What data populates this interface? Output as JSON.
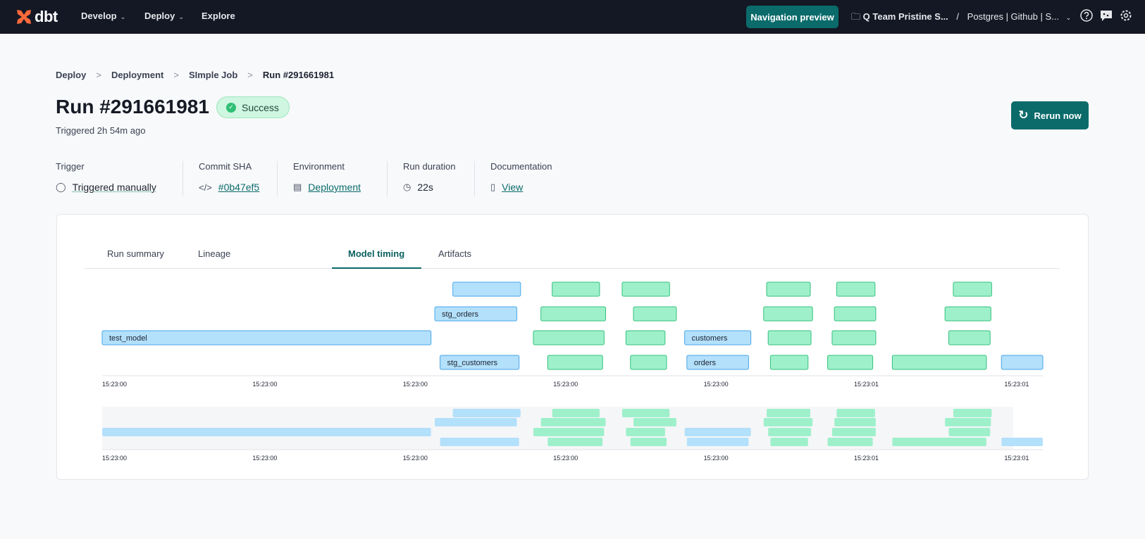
{
  "nav": {
    "logo": "dbt",
    "items": [
      {
        "label": "Develop",
        "has_menu": true
      },
      {
        "label": "Deploy",
        "has_menu": true
      },
      {
        "label": "Explore",
        "has_menu": false
      }
    ],
    "preview_button": "Navigation preview",
    "project": "Q Team Pristine S...",
    "separator": "/",
    "environment": "Postgres | Github | S...",
    "icons": [
      "help-icon",
      "chat-icon",
      "settings-icon"
    ]
  },
  "breadcrumb": [
    "Deploy",
    "Deployment",
    "SImple Job",
    "Run #291661981"
  ],
  "header": {
    "title": "Run #291661981",
    "status": "Success",
    "subtitle": "Triggered 2h 54m ago",
    "rerun_label": "Rerun now"
  },
  "meta": [
    {
      "label": "Trigger",
      "value": "Triggered manually",
      "icon": "user-icon"
    },
    {
      "label": "Commit SHA",
      "value": "#0b47ef5",
      "icon": "code-icon"
    },
    {
      "label": "Environment",
      "value": "Deployment",
      "icon": "database-icon"
    },
    {
      "label": "Run duration",
      "value": "22s",
      "icon": "clock-icon"
    },
    {
      "label": "Documentation",
      "value": "View",
      "icon": "book-icon"
    }
  ],
  "tabs": [
    "Run summary",
    "Lineage",
    "Model timing",
    "Artifacts"
  ],
  "active_tab": "Model timing",
  "colors": {
    "accent": "#0b6b6b",
    "model": "#b3e0fb",
    "model_border": "#4aa6e8",
    "test": "#9ef0cb",
    "test_border": "#35c07d"
  },
  "chart_data": {
    "type": "gantt",
    "x_unit": "seconds after 15:23:00",
    "x_range": [
      0,
      1.25
    ],
    "x_ticks": [
      "15:23:00",
      "15:23:00",
      "15:23:00",
      "15:23:00",
      "15:23:00",
      "15:23:01",
      "15:23:01"
    ],
    "rows": [
      [
        {
          "kind": "model",
          "label": "",
          "start": 0.466,
          "end": 0.556
        },
        {
          "kind": "test",
          "start": 0.598,
          "end": 0.661
        },
        {
          "kind": "test",
          "start": 0.691,
          "end": 0.754
        },
        {
          "kind": "test",
          "start": 0.883,
          "end": 0.941
        },
        {
          "kind": "test",
          "start": 0.976,
          "end": 1.027
        },
        {
          "kind": "test",
          "start": 1.131,
          "end": 1.182
        }
      ],
      [
        {
          "kind": "model",
          "label": "stg_orders",
          "start": 0.442,
          "end": 0.551
        },
        {
          "kind": "test",
          "start": 0.583,
          "end": 0.669
        },
        {
          "kind": "test",
          "start": 0.706,
          "end": 0.763
        },
        {
          "kind": "test",
          "start": 0.879,
          "end": 0.944
        },
        {
          "kind": "test",
          "start": 0.973,
          "end": 1.028
        },
        {
          "kind": "test",
          "start": 1.12,
          "end": 1.181
        }
      ],
      [
        {
          "kind": "model",
          "label": "test_model",
          "start": 0.0,
          "end": 0.437
        },
        {
          "kind": "test",
          "start": 0.573,
          "end": 0.667
        },
        {
          "kind": "test",
          "start": 0.696,
          "end": 0.748
        },
        {
          "kind": "model",
          "label": "customers",
          "start": 0.774,
          "end": 0.862
        },
        {
          "kind": "test",
          "start": 0.885,
          "end": 0.942
        },
        {
          "kind": "test",
          "start": 0.97,
          "end": 1.028
        },
        {
          "kind": "test",
          "start": 1.125,
          "end": 1.18
        }
      ],
      [
        {
          "kind": "model",
          "label": "stg_customers",
          "start": 0.449,
          "end": 0.554
        },
        {
          "kind": "test",
          "start": 0.592,
          "end": 0.665
        },
        {
          "kind": "test",
          "start": 0.702,
          "end": 0.75
        },
        {
          "kind": "model",
          "label": "orders",
          "start": 0.777,
          "end": 0.859
        },
        {
          "kind": "test",
          "start": 0.888,
          "end": 0.938
        },
        {
          "kind": "test",
          "start": 0.964,
          "end": 1.024
        },
        {
          "kind": "test",
          "start": 1.05,
          "end": 1.175
        },
        {
          "kind": "model",
          "label": "",
          "start": 1.195,
          "end": 1.25
        }
      ]
    ]
  }
}
